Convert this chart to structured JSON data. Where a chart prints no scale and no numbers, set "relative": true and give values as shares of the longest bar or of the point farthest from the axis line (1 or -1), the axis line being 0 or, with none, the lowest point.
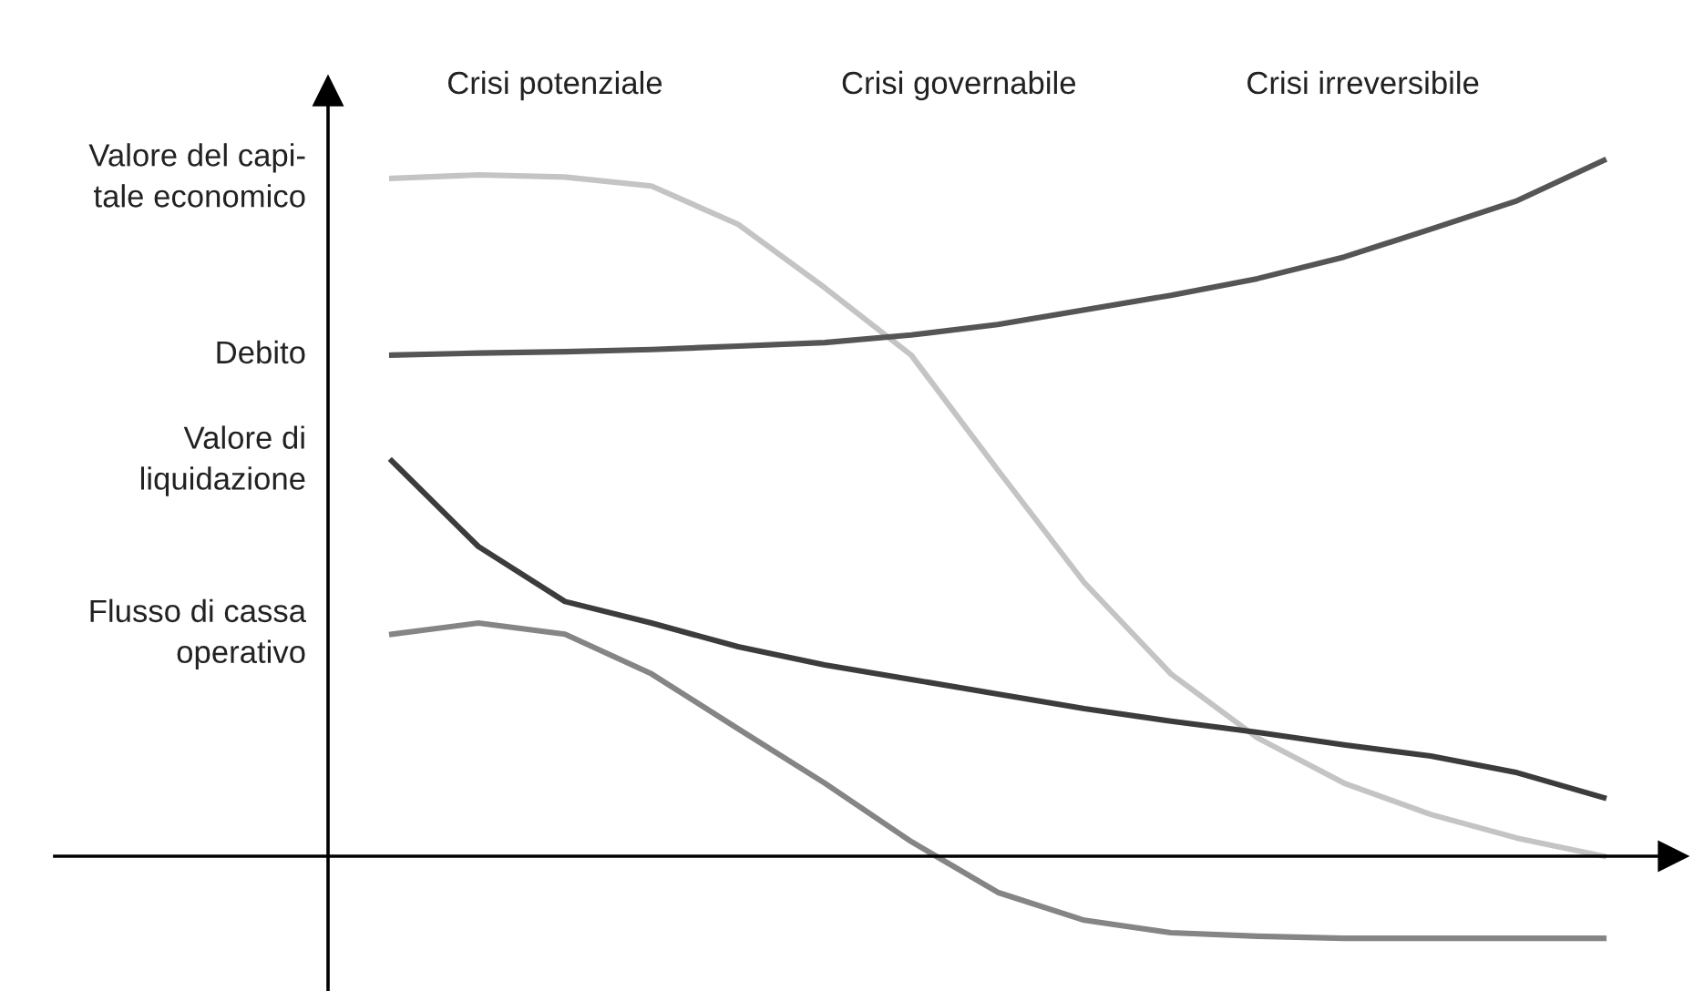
{
  "chart_data": {
    "type": "line",
    "relative": true,
    "categories": [
      null,
      null,
      null,
      null,
      null,
      null,
      null,
      null,
      null,
      null,
      null,
      null,
      null,
      null,
      null
    ],
    "series": [
      {
        "name": "Valore del capi-\ntale economico",
        "color": "#c4c4c4",
        "values": [
          0.974,
          0.979,
          0.976,
          0.963,
          0.908,
          0.817,
          0.72,
          0.555,
          0.393,
          0.262,
          0.17,
          0.105,
          0.06,
          0.026,
          0
        ]
      },
      {
        "name": "Debito",
        "color": "#555555",
        "values": [
          0.72,
          0.723,
          0.725,
          0.728,
          0.733,
          0.738,
          0.749,
          0.764,
          0.785,
          0.806,
          0.83,
          0.861,
          0.901,
          0.942,
          1
        ]
      },
      {
        "name": "Valore di\nliquidazione",
        "color": "#3c3c3c",
        "values": [
          0.568,
          0.445,
          0.366,
          0.335,
          0.301,
          0.275,
          0.254,
          0.233,
          0.212,
          0.194,
          0.178,
          0.16,
          0.144,
          0.12,
          0.084
        ]
      },
      {
        "name": "Flusso di cassa\noperativo",
        "color": "#858585",
        "values": [
          0.319,
          0.335,
          0.319,
          0.262,
          0.183,
          0.105,
          0.021,
          -0.052,
          -0.092,
          -0.11,
          -0.115,
          -0.118,
          -0.118,
          -0.118,
          -0.118
        ]
      }
    ],
    "annotations": [
      "Crisi potenziale",
      "Crisi governabile",
      "Crisi irreversibile"
    ],
    "legend": false,
    "marker": "none",
    "line_style": "solid"
  }
}
